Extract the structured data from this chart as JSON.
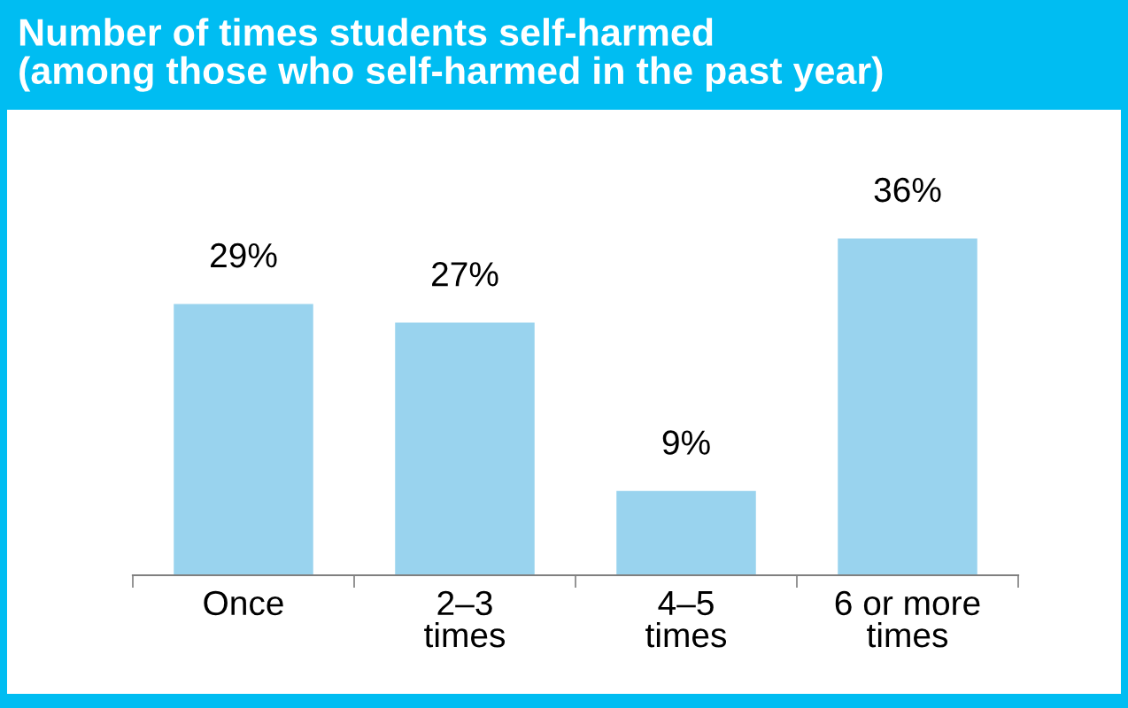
{
  "chart_data": {
    "type": "bar",
    "title": "Number of times students self-harmed\n(among those who self-harmed in the past year)",
    "categories": [
      "Once",
      "2–3\ntimes",
      "4–5\ntimes",
      "6 or more\ntimes"
    ],
    "values": [
      29,
      27,
      9,
      36
    ],
    "value_labels": [
      "29%",
      "27%",
      "9%",
      "36%"
    ],
    "color": "#99d3ee",
    "grid": false,
    "legend": false
  }
}
